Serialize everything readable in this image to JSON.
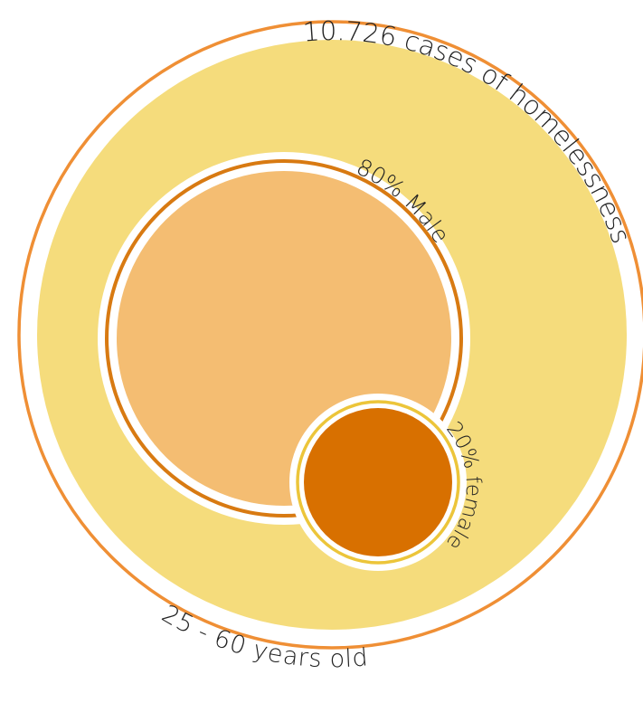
{
  "diagram": {
    "title": "",
    "labels": {
      "total": "10.726 cases of homelessness",
      "age_range": "25 - 60 years old",
      "male": "80% Male",
      "female": "20% female"
    },
    "shares": {
      "male_percent": 80,
      "female_percent": 20
    },
    "colors": {
      "outer_ring": "#ef8f35",
      "outer_fill": "#f5dc7c",
      "male_ring": "#d87a12",
      "male_fill": "#f4bd72",
      "female_ring": "#ecc53a",
      "female_fill": "#d87000",
      "label_text": "#222222"
    }
  }
}
